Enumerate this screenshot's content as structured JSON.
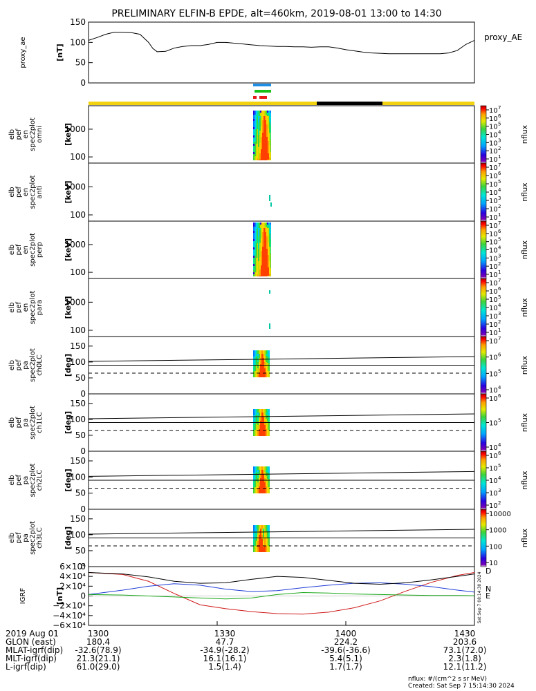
{
  "title": "PRELIMINARY ELFIN-B EPDE, alt=460km, 2019-08-01 13:00 to 14:30",
  "status_bars": {
    "top_color": "#1f8fe6",
    "mid_color": "#16c016",
    "bottom_color": "#e61919",
    "track_color": "#f2d20f",
    "shadow_color": "#000000"
  },
  "chart_data": [
    {
      "id": "proxy_ae",
      "type": "line",
      "ylabel": [
        "proxy_ae",
        "[nT]"
      ],
      "legend": "proxy_AE",
      "yticks": [
        "150",
        "100",
        "50",
        "0"
      ],
      "ylim": [
        0,
        150
      ],
      "x": [
        0,
        2,
        4,
        6,
        8,
        10,
        12,
        14,
        15,
        16,
        18,
        20,
        22,
        24,
        26,
        28,
        30,
        32,
        34,
        36,
        38,
        40,
        42,
        44,
        46,
        48,
        50,
        52,
        54,
        56,
        58,
        60,
        62,
        64,
        66,
        68,
        70,
        72,
        74,
        76,
        78,
        80,
        82,
        84,
        86,
        88,
        90
      ],
      "y": [
        105,
        112,
        120,
        125,
        125,
        124,
        120,
        100,
        85,
        77,
        78,
        86,
        90,
        92,
        92,
        95,
        100,
        100,
        98,
        96,
        94,
        92,
        91,
        90,
        90,
        89,
        89,
        88,
        89,
        89,
        86,
        82,
        79,
        76,
        74,
        73,
        72,
        72,
        72,
        72,
        72,
        72,
        72,
        74,
        80,
        95,
        105
      ]
    },
    {
      "id": "en_omni",
      "type": "heatmap",
      "ylabel": [
        "elb",
        "pef",
        "en",
        "spec2plot",
        "omni",
        "[keV]"
      ],
      "yscale": "log",
      "yticks": [
        "1000",
        "100"
      ],
      "ylim": [
        60,
        7000
      ],
      "colorbar": {
        "label": "nflux",
        "ticks": [
          "10",
          "10",
          "10",
          "10",
          "10",
          "10",
          "10"
        ],
        "exps": [
          "7",
          "6",
          "5",
          "4",
          "3",
          "2",
          "1"
        ],
        "range": [
          1,
          7
        ]
      }
    },
    {
      "id": "en_anti",
      "type": "heatmap",
      "ylabel": [
        "elb",
        "pef",
        "en",
        "spec2plot",
        "anti",
        "[keV]"
      ],
      "yscale": "log",
      "yticks": [
        "1000",
        "100"
      ],
      "ylim": [
        60,
        7000
      ],
      "colorbar": {
        "label": "nflux",
        "ticks": [
          "10",
          "10",
          "10",
          "10",
          "10",
          "10",
          "10"
        ],
        "exps": [
          "7",
          "6",
          "5",
          "4",
          "3",
          "2",
          "1"
        ],
        "range": [
          1,
          7
        ]
      }
    },
    {
      "id": "en_perp",
      "type": "heatmap",
      "ylabel": [
        "elb",
        "pef",
        "en",
        "spec2plot",
        "perp",
        "[keV]"
      ],
      "yscale": "log",
      "yticks": [
        "1000",
        "100"
      ],
      "ylim": [
        60,
        7000
      ],
      "colorbar": {
        "label": "nflux",
        "ticks": [
          "10",
          "10",
          "10",
          "10",
          "10",
          "10",
          "10"
        ],
        "exps": [
          "7",
          "6",
          "5",
          "4",
          "3",
          "2",
          "1"
        ],
        "range": [
          1,
          7
        ]
      }
    },
    {
      "id": "en_para",
      "type": "heatmap",
      "ylabel": [
        "elb",
        "pef",
        "en",
        "spec2plot",
        "para",
        "[keV]"
      ],
      "yscale": "log",
      "yticks": [
        "1000",
        "100"
      ],
      "ylim": [
        60,
        7000
      ],
      "colorbar": {
        "label": "nflux",
        "ticks": [
          "10",
          "10",
          "10",
          "10",
          "10",
          "10",
          "10"
        ],
        "exps": [
          "7",
          "6",
          "5",
          "4",
          "3",
          "2",
          "1"
        ],
        "range": [
          1,
          7
        ]
      }
    },
    {
      "id": "pa_ch0",
      "type": "heatmap",
      "ylabel": [
        "elb",
        "pef",
        "pa",
        "spec2plot",
        "ch0LC",
        "[deg]"
      ],
      "yticks": [
        "150",
        "100",
        "50",
        "0"
      ],
      "ylim": [
        0,
        180
      ],
      "colorbar": {
        "label": "nflux",
        "ticks": [
          "10",
          "10",
          "10",
          "10"
        ],
        "exps": [
          "7",
          "6",
          "5",
          "4"
        ],
        "range": [
          4,
          7
        ]
      }
    },
    {
      "id": "pa_ch1",
      "type": "heatmap",
      "ylabel": [
        "elb",
        "pef",
        "pa",
        "spec2plot",
        "ch1LC",
        "[deg]"
      ],
      "yticks": [
        "150",
        "100",
        "50",
        "0"
      ],
      "ylim": [
        0,
        180
      ],
      "colorbar": {
        "label": "nflux",
        "ticks": [
          "10",
          "10",
          "10"
        ],
        "exps": [
          "6",
          "5",
          "4"
        ],
        "range": [
          3.5,
          6.5
        ]
      }
    },
    {
      "id": "pa_ch2",
      "type": "heatmap",
      "ylabel": [
        "elb",
        "pef",
        "pa",
        "spec2plot",
        "ch2LC",
        "[deg]"
      ],
      "yticks": [
        "150",
        "100",
        "50",
        "0"
      ],
      "ylim": [
        0,
        180
      ],
      "colorbar": {
        "label": "nflux",
        "ticks": [
          "10",
          "10",
          "10",
          "10",
          "10"
        ],
        "exps": [
          "6",
          "5",
          "4",
          "3",
          "2"
        ],
        "range": [
          2,
          6
        ]
      }
    },
    {
      "id": "pa_ch3",
      "type": "heatmap",
      "ylabel": [
        "elb",
        "pef",
        "pa",
        "spec2plot",
        "ch3LC",
        "[deg]"
      ],
      "yticks": [
        "150",
        "100",
        "50",
        "0"
      ],
      "ylim": [
        0,
        180
      ],
      "colorbar": {
        "label": "nflux",
        "ticks": [
          "10000",
          "1000",
          "100",
          "10"
        ],
        "range": [
          1,
          4
        ]
      }
    },
    {
      "id": "igrf",
      "type": "line",
      "ylabel": [
        "IGRF",
        "[nT]"
      ],
      "yticks": [
        "6×10⁴",
        "4×10⁴",
        "2×10⁴",
        "0",
        "−2×10⁴",
        "−4×10⁴",
        "−6×10⁴"
      ],
      "ylim": [
        -60000,
        60000
      ],
      "side_text": "Sat Sep  7 08:14:30 2024",
      "series": [
        {
          "name": "D",
          "color": "#d01818",
          "x": [
            0,
            8,
            14,
            20,
            26,
            32,
            38,
            44,
            50,
            56,
            62,
            68,
            74,
            80,
            86,
            90
          ],
          "y": [
            48000,
            44000,
            30000,
            5000,
            -18000,
            -26000,
            -32000,
            -36000,
            -37000,
            -33000,
            -24000,
            -10000,
            10000,
            28000,
            42000,
            48000
          ]
        },
        {
          "name": "N",
          "color": "#1e3cd6",
          "x": [
            0,
            8,
            14,
            20,
            26,
            32,
            38,
            44,
            50,
            56,
            62,
            68,
            74,
            80,
            86,
            90
          ],
          "y": [
            3000,
            12000,
            20000,
            25000,
            22000,
            14000,
            9000,
            11000,
            17000,
            22000,
            26000,
            27000,
            24000,
            19000,
            12000,
            8000
          ]
        },
        {
          "name": "E",
          "color": "#18a818",
          "x": [
            0,
            8,
            14,
            20,
            26,
            32,
            38,
            44,
            50,
            56,
            62,
            68,
            74,
            80,
            86,
            90
          ],
          "y": [
            3000,
            2000,
            0,
            -2000,
            -4000,
            -6000,
            -4000,
            3000,
            7000,
            6000,
            4000,
            3000,
            2000,
            1000,
            1000,
            500
          ]
        },
        {
          "name": "",
          "color": "#000000",
          "x": [
            0,
            8,
            14,
            20,
            26,
            32,
            38,
            44,
            50,
            56,
            62,
            68,
            74,
            80,
            86,
            90
          ],
          "y": [
            48000,
            45000,
            39000,
            30000,
            26000,
            27000,
            34000,
            40000,
            38000,
            32000,
            26000,
            24000,
            27000,
            33000,
            40000,
            45000
          ]
        }
      ]
    }
  ],
  "x_axis": {
    "row_labels": [
      "2019 Aug 01",
      "GLON (east)",
      "MLAT-igrf(dip)",
      "MLT-igrf(dip)",
      "L-igrf(dip)"
    ],
    "columns": [
      [
        "1300",
        "180.4",
        "-32.6(78.9)",
        "21.3(21.1)",
        "61.0(29.0)"
      ],
      [
        "1330",
        "47.7",
        "-34.9(-28.2)",
        "16.1(16.1)",
        "1.5(1.4)"
      ],
      [
        "1400",
        "224.2",
        "-39.6(-36.6)",
        "5.4(5.1)",
        "1.7(1.7)"
      ],
      [
        "1430",
        "203.6",
        "73.1(72.0)",
        "2.3(1.8)",
        "12.1(11.2)"
      ]
    ]
  },
  "footer": {
    "units": "nflux: #/(cm^2 s sr MeV)",
    "created": "Created: Sat Sep  7 15:14:30 2024"
  }
}
